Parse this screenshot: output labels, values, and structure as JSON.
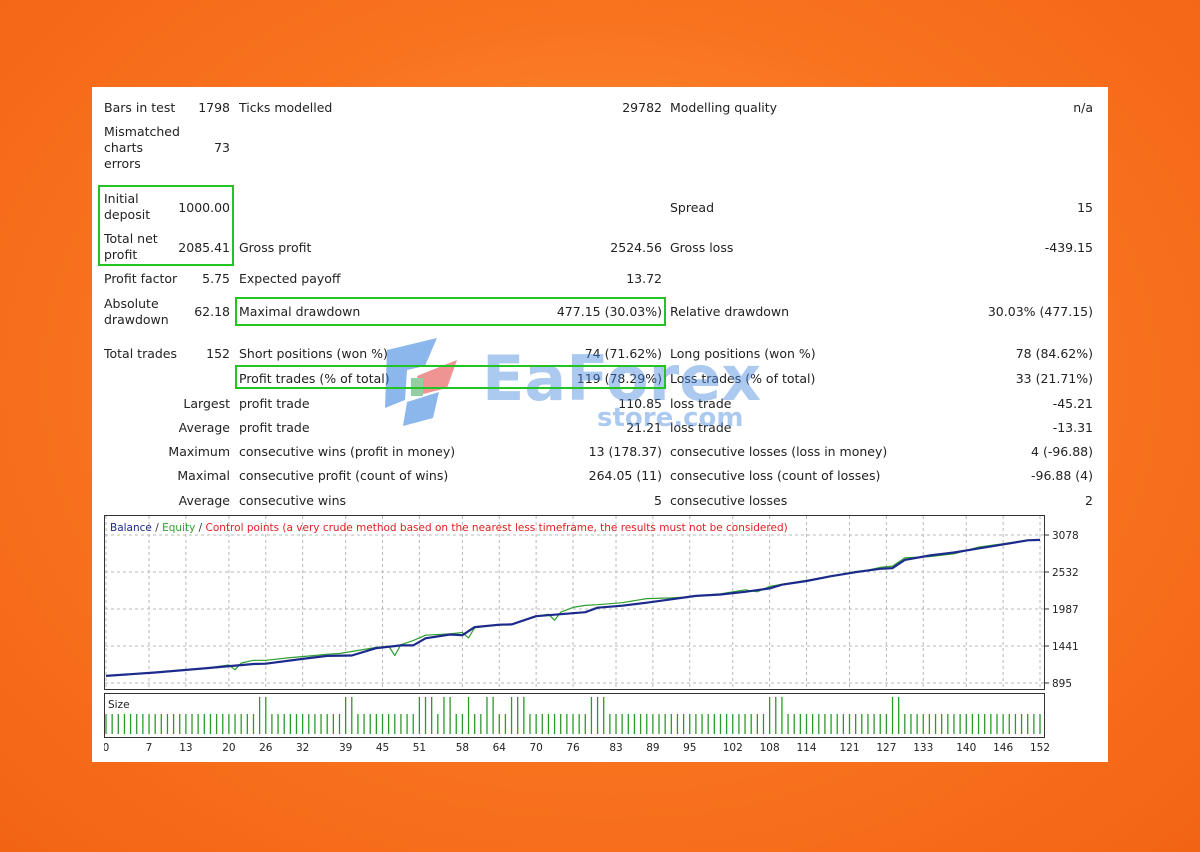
{
  "stats": {
    "bars_label": "Bars in test",
    "bars_value": "1798",
    "ticks_label": "Ticks modelled",
    "ticks_value": "29782",
    "quality_label": "Modelling quality",
    "quality_value": "n/a",
    "mismatch_label": "Mismatched charts errors",
    "mismatch_value": "73",
    "deposit_label": "Initial deposit",
    "deposit_value": "1000.00",
    "spread_label": "Spread",
    "spread_value": "15",
    "net_label": "Total net profit",
    "net_value": "2085.41",
    "gross_profit_label": "Gross profit",
    "gross_profit_value": "2524.56",
    "gross_loss_label": "Gross loss",
    "gross_loss_value": "-439.15",
    "pf_label": "Profit factor",
    "pf_value": "5.75",
    "payoff_label": "Expected payoff",
    "payoff_value": "13.72",
    "abs_dd_label": "Absolute drawdown",
    "abs_dd_value": "62.18",
    "max_dd_label": "Maximal drawdown",
    "max_dd_value": "477.15 (30.03%)",
    "rel_dd_label": "Relative drawdown",
    "rel_dd_value": "30.03% (477.15)",
    "total_trades_label": "Total trades",
    "total_trades_value": "152",
    "short_label": "Short positions (won %)",
    "short_value": "74 (71.62%)",
    "long_label": "Long positions (won %)",
    "long_value": "78 (84.62%)",
    "profit_trades_label": "Profit trades (% of total)",
    "profit_trades_value": "119 (78.29%)",
    "loss_trades_label": "Loss trades (% of total)",
    "loss_trades_value": "33 (21.71%)"
  },
  "detail_rows": [
    {
      "prefix": "Largest",
      "left_label": "profit trade",
      "left_value": "110.85",
      "right_label": "loss trade",
      "right_value": "-45.21"
    },
    {
      "prefix": "Average",
      "left_label": "profit trade",
      "left_value": "21.21",
      "right_label": "loss trade",
      "right_value": "-13.31"
    },
    {
      "prefix": "Maximum",
      "left_label": "consecutive wins (profit in money)",
      "left_value": "13 (178.37)",
      "right_label": "consecutive losses (loss in money)",
      "right_value": "4 (-96.88)"
    },
    {
      "prefix": "Maximal",
      "left_label": "consecutive profit (count of wins)",
      "left_value": "264.05 (11)",
      "right_label": "consecutive loss (count of losses)",
      "right_value": "-96.88 (4)"
    },
    {
      "prefix": "Average",
      "left_label": "consecutive wins",
      "left_value": "5",
      "right_label": "consecutive losses",
      "right_value": "2"
    }
  ],
  "watermark": {
    "brand": "EaForex",
    "suffix": "store.com"
  },
  "colors": {
    "balance": "#1c2a8c",
    "equity": "#2e9e2e",
    "control": "#e02020",
    "highlight": "#22c322"
  },
  "chart_data": {
    "type": "line",
    "legend": {
      "balance": "Balance",
      "equity": "Equity",
      "control": "Control points (a very crude method based on the nearest less timeframe, the results must not be considered)"
    },
    "y_ticks": [
      "3078",
      "2532",
      "1987",
      "1441",
      "895"
    ],
    "ylim": [
      895,
      3078
    ],
    "xlim": [
      0,
      152
    ],
    "x_ticks": [
      "0",
      "7",
      "13",
      "20",
      "26",
      "32",
      "39",
      "45",
      "51",
      "58",
      "64",
      "70",
      "76",
      "83",
      "89",
      "95",
      "102",
      "108",
      "114",
      "121",
      "127",
      "133",
      "140",
      "146",
      "152"
    ],
    "size_label": "Size",
    "series": [
      {
        "name": "Balance",
        "x": [
          0,
          8,
          16,
          24,
          26,
          32,
          36,
          40,
          44,
          48,
          50,
          52,
          56,
          58,
          60,
          64,
          66,
          70,
          74,
          78,
          80,
          84,
          88,
          92,
          96,
          100,
          104,
          108,
          110,
          114,
          118,
          122,
          126,
          128,
          130,
          134,
          138,
          142,
          146,
          150,
          152
        ],
        "y": [
          1000,
          1050,
          1110,
          1175,
          1180,
          1250,
          1295,
          1300,
          1410,
          1450,
          1450,
          1555,
          1610,
          1600,
          1720,
          1755,
          1760,
          1880,
          1910,
          1940,
          2005,
          2035,
          2080,
          2130,
          2180,
          2200,
          2240,
          2290,
          2345,
          2400,
          2470,
          2530,
          2580,
          2590,
          2710,
          2775,
          2820,
          2880,
          2940,
          3000,
          3005
        ]
      },
      {
        "name": "Equity",
        "x": [
          0,
          8,
          16,
          20,
          21,
          22,
          24,
          26,
          30,
          34,
          36,
          38,
          40,
          44,
          46,
          47,
          48,
          50,
          52,
          56,
          58,
          59,
          60,
          64,
          66,
          70,
          72,
          73,
          74,
          76,
          78,
          80,
          84,
          88,
          92,
          94,
          96,
          100,
          104,
          106,
          108,
          110,
          114,
          118,
          122,
          124,
          126,
          128,
          130,
          134,
          138,
          140,
          142,
          146,
          150,
          152
        ],
        "y": [
          1000,
          1050,
          1110,
          1160,
          1090,
          1190,
          1230,
          1230,
          1270,
          1300,
          1320,
          1330,
          1360,
          1420,
          1440,
          1300,
          1460,
          1520,
          1600,
          1620,
          1640,
          1560,
          1710,
          1750,
          1760,
          1880,
          1910,
          1820,
          1940,
          2010,
          2040,
          2050,
          2080,
          2140,
          2150,
          2160,
          2180,
          2210,
          2270,
          2240,
          2320,
          2350,
          2410,
          2470,
          2540,
          2560,
          2600,
          2620,
          2740,
          2760,
          2800,
          2850,
          2900,
          2950,
          3000,
          3010
        ]
      }
    ],
    "size_bars": {
      "positions": [
        0,
        1,
        2,
        3,
        4,
        5,
        6,
        7,
        8,
        9,
        10,
        11,
        12,
        13,
        14,
        15,
        16,
        17,
        18,
        19,
        20,
        21,
        22,
        23,
        24,
        25,
        26,
        27,
        28,
        29,
        30,
        31,
        32,
        33,
        34,
        35,
        36,
        37,
        38,
        39,
        40,
        41,
        42,
        43,
        44,
        45,
        46,
        47,
        48,
        49,
        50,
        51,
        52,
        53,
        54,
        55,
        56,
        57,
        58,
        59,
        60,
        61,
        62,
        63,
        64,
        65,
        66,
        67,
        68,
        69,
        70,
        71,
        72,
        73,
        74,
        75,
        76,
        77,
        78,
        79,
        80,
        81,
        82,
        83,
        84,
        85,
        86,
        87,
        88,
        89,
        90,
        91,
        92,
        93,
        94,
        95,
        96,
        97,
        98,
        99,
        100,
        101,
        102,
        103,
        104,
        105,
        106,
        107,
        108,
        109,
        110,
        111,
        112,
        113,
        114,
        115,
        116,
        117,
        118,
        119,
        120,
        121,
        122,
        123,
        124,
        125,
        126,
        127,
        128,
        129,
        130,
        131,
        132,
        133,
        134,
        135,
        136,
        137,
        138,
        139,
        140,
        141,
        142,
        143,
        144,
        145,
        146,
        147,
        148,
        149,
        150,
        151,
        152
      ],
      "tall": [
        25,
        26,
        39,
        40,
        51,
        52,
        53,
        55,
        56,
        59,
        62,
        63,
        66,
        67,
        68,
        79,
        80,
        81,
        108,
        109,
        110,
        128,
        129
      ]
    }
  }
}
